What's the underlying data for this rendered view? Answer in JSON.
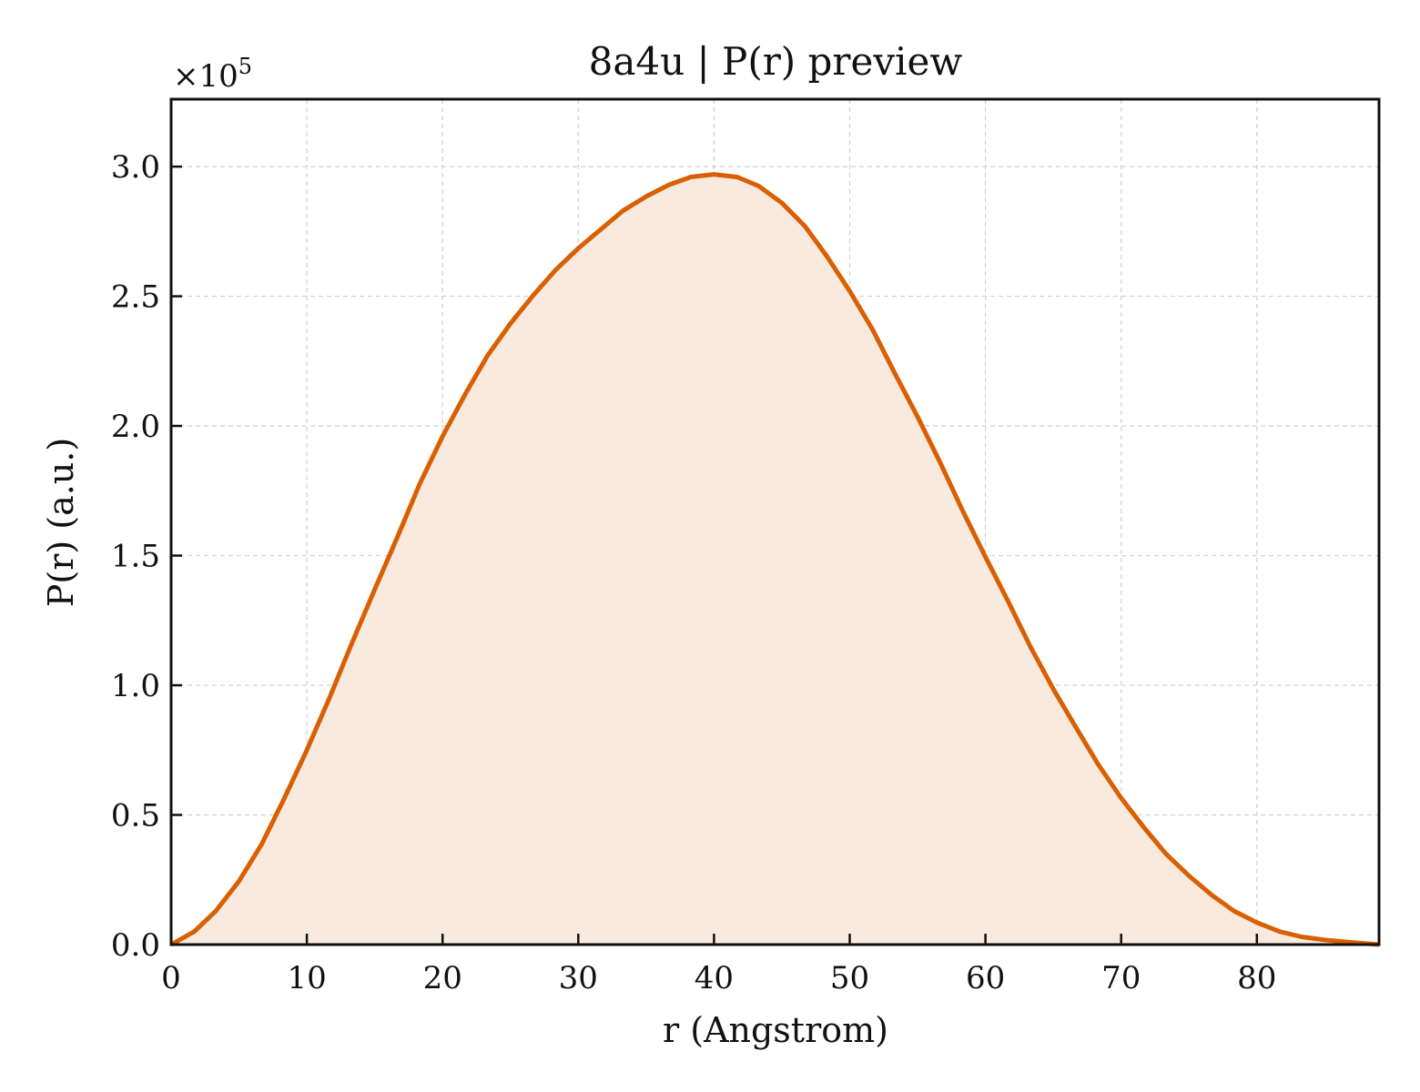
{
  "chart_data": {
    "type": "area",
    "title": "8a4u | P(r) preview",
    "xlabel": "r (Angstrom)",
    "ylabel": "P(r) (a.u.)",
    "y_multiplier_text": "×10",
    "y_multiplier_exp": "5",
    "xlim": [
      0,
      89
    ],
    "ylim": [
      0,
      3.26
    ],
    "x_ticks": [
      0,
      10,
      20,
      30,
      40,
      50,
      60,
      70,
      80
    ],
    "y_ticks": [
      0.0,
      0.5,
      1.0,
      1.5,
      2.0,
      2.5,
      3.0
    ],
    "x_tick_labels": [
      "0",
      "10",
      "20",
      "30",
      "40",
      "50",
      "60",
      "70",
      "80"
    ],
    "y_tick_labels": [
      "0.0",
      "0.5",
      "1.0",
      "1.5",
      "2.0",
      "2.5",
      "3.0"
    ],
    "grid": true,
    "line_color": "#d95f02",
    "fill_color": "#f9eadf",
    "series": [
      {
        "x": [
          0,
          1.7,
          3.3,
          5.0,
          6.7,
          8.3,
          10.0,
          11.7,
          13.3,
          15.0,
          16.7,
          18.3,
          20.0,
          21.7,
          23.3,
          25.0,
          26.7,
          28.3,
          30.0,
          31.7,
          33.3,
          35.0,
          36.7,
          38.3,
          40.0,
          41.7,
          43.3,
          45.0,
          46.7,
          48.3,
          50.0,
          51.7,
          53.3,
          55.0,
          56.7,
          58.3,
          60.0,
          61.7,
          63.3,
          65.0,
          66.7,
          68.3,
          70.0,
          71.7,
          73.3,
          75.0,
          76.7,
          78.3,
          80.0,
          81.7,
          83.3,
          85.0,
          86.7,
          89.0
        ],
        "y": [
          0.0,
          0.05,
          0.13,
          0.245,
          0.39,
          0.56,
          0.75,
          0.955,
          1.16,
          1.37,
          1.575,
          1.775,
          1.96,
          2.125,
          2.27,
          2.395,
          2.505,
          2.6,
          2.685,
          2.76,
          2.83,
          2.885,
          2.93,
          2.96,
          2.97,
          2.96,
          2.925,
          2.86,
          2.77,
          2.655,
          2.52,
          2.37,
          2.205,
          2.035,
          1.855,
          1.675,
          1.495,
          1.32,
          1.15,
          0.985,
          0.835,
          0.695,
          0.565,
          0.45,
          0.35,
          0.265,
          0.19,
          0.13,
          0.085,
          0.05,
          0.03,
          0.018,
          0.01,
          0.0
        ]
      }
    ]
  }
}
